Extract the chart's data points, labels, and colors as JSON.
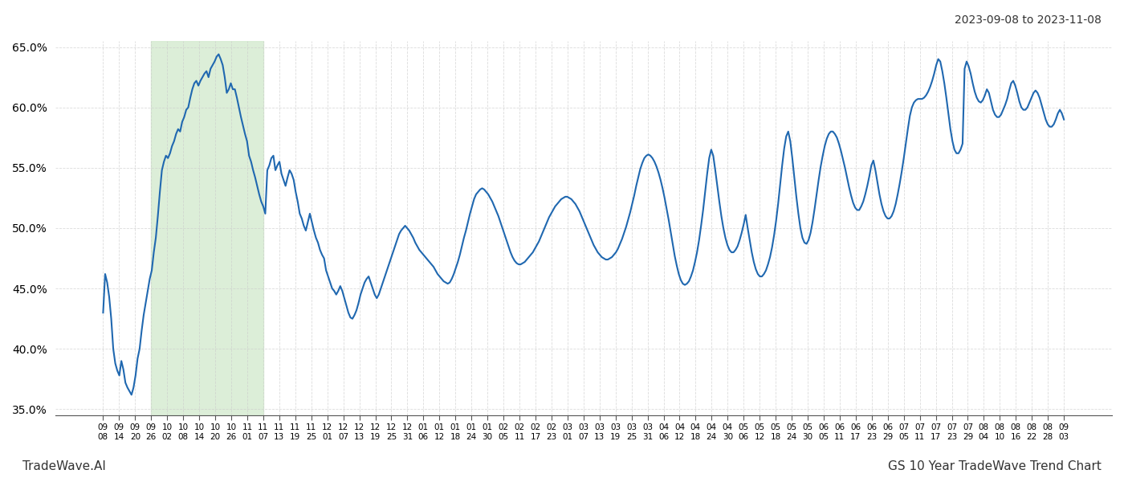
{
  "title_top_right": "2023-09-08 to 2023-11-08",
  "title_bottom_left": "TradeWave.AI",
  "title_bottom_right": "GS 10 Year TradeWave Trend Chart",
  "line_color": "#2068b0",
  "line_width": 1.5,
  "shade_color": "#d6ecd2",
  "shade_alpha": 0.85,
  "ylim": [
    0.345,
    0.655
  ],
  "yticks": [
    0.35,
    0.4,
    0.45,
    0.5,
    0.55,
    0.6,
    0.65
  ],
  "ytick_labels": [
    "35.0%",
    "40.0%",
    "45.0%",
    "50.0%",
    "55.0%",
    "60.0%",
    "65.0%"
  ],
  "xtick_labels": [
    "09-08",
    "09-14",
    "09-20",
    "09-26",
    "10-02",
    "10-08",
    "10-14",
    "10-20",
    "10-26",
    "11-01",
    "11-07",
    "11-13",
    "11-19",
    "11-25",
    "12-01",
    "12-07",
    "12-13",
    "12-19",
    "12-25",
    "12-31",
    "01-06",
    "01-12",
    "01-18",
    "01-24",
    "01-30",
    "02-05",
    "02-11",
    "02-17",
    "02-23",
    "03-01",
    "03-07",
    "03-13",
    "03-19",
    "03-25",
    "03-31",
    "04-06",
    "04-12",
    "04-18",
    "04-24",
    "04-30",
    "05-06",
    "05-12",
    "05-18",
    "05-24",
    "05-30",
    "06-05",
    "06-11",
    "06-17",
    "06-23",
    "06-29",
    "07-05",
    "07-11",
    "07-17",
    "07-23",
    "07-29",
    "08-04",
    "08-10",
    "08-16",
    "08-22",
    "08-28",
    "09-03"
  ],
  "shade_x_start_label": "09-26",
  "shade_x_end_label": "11-07",
  "values": [
    0.43,
    0.462,
    0.455,
    0.443,
    0.425,
    0.4,
    0.388,
    0.382,
    0.378,
    0.39,
    0.383,
    0.372,
    0.368,
    0.365,
    0.362,
    0.368,
    0.378,
    0.392,
    0.4,
    0.415,
    0.428,
    0.438,
    0.448,
    0.458,
    0.465,
    0.48,
    0.492,
    0.51,
    0.53,
    0.548,
    0.555,
    0.56,
    0.558,
    0.562,
    0.568,
    0.572,
    0.578,
    0.582,
    0.58,
    0.588,
    0.592,
    0.598,
    0.6,
    0.608,
    0.615,
    0.62,
    0.622,
    0.618,
    0.622,
    0.625,
    0.628,
    0.63,
    0.625,
    0.632,
    0.635,
    0.638,
    0.642,
    0.644,
    0.64,
    0.635,
    0.625,
    0.612,
    0.615,
    0.62,
    0.615,
    0.615,
    0.608,
    0.6,
    0.592,
    0.585,
    0.578,
    0.572,
    0.56,
    0.555,
    0.548,
    0.542,
    0.535,
    0.528,
    0.522,
    0.518,
    0.512,
    0.548,
    0.552,
    0.558,
    0.56,
    0.548,
    0.552,
    0.555,
    0.545,
    0.54,
    0.535,
    0.542,
    0.548,
    0.545,
    0.54,
    0.53,
    0.522,
    0.512,
    0.508,
    0.502,
    0.498,
    0.505,
    0.512,
    0.505,
    0.498,
    0.492,
    0.488,
    0.482,
    0.478,
    0.475,
    0.465,
    0.46,
    0.455,
    0.45,
    0.448,
    0.445,
    0.448,
    0.452,
    0.448,
    0.442,
    0.436,
    0.43,
    0.426,
    0.425,
    0.428,
    0.432,
    0.438,
    0.445,
    0.45,
    0.455,
    0.458,
    0.46,
    0.455,
    0.45,
    0.445,
    0.442,
    0.445,
    0.45,
    0.455,
    0.46,
    0.465,
    0.47,
    0.475,
    0.48,
    0.485,
    0.49,
    0.495,
    0.498,
    0.5,
    0.502,
    0.5,
    0.498,
    0.495,
    0.492,
    0.488,
    0.485,
    0.482,
    0.48,
    0.478,
    0.476,
    0.474,
    0.472,
    0.47,
    0.468,
    0.465,
    0.462,
    0.46,
    0.458,
    0.456,
    0.455,
    0.454,
    0.455,
    0.458,
    0.462,
    0.467,
    0.472,
    0.478,
    0.485,
    0.492,
    0.498,
    0.505,
    0.512,
    0.518,
    0.524,
    0.528,
    0.53,
    0.532,
    0.533,
    0.532,
    0.53,
    0.528,
    0.525,
    0.522,
    0.518,
    0.514,
    0.51,
    0.505,
    0.5,
    0.495,
    0.49,
    0.485,
    0.48,
    0.476,
    0.473,
    0.471,
    0.47,
    0.47,
    0.471,
    0.472,
    0.474,
    0.476,
    0.478,
    0.48,
    0.483,
    0.486,
    0.489,
    0.493,
    0.497,
    0.501,
    0.505,
    0.509,
    0.512,
    0.515,
    0.518,
    0.52,
    0.522,
    0.524,
    0.525,
    0.526,
    0.526,
    0.525,
    0.524,
    0.522,
    0.52,
    0.517,
    0.514,
    0.51,
    0.506,
    0.502,
    0.498,
    0.494,
    0.49,
    0.486,
    0.483,
    0.48,
    0.478,
    0.476,
    0.475,
    0.474,
    0.474,
    0.475,
    0.476,
    0.478,
    0.48,
    0.483,
    0.487,
    0.491,
    0.496,
    0.501,
    0.507,
    0.513,
    0.52,
    0.527,
    0.535,
    0.542,
    0.549,
    0.554,
    0.558,
    0.56,
    0.561,
    0.56,
    0.558,
    0.555,
    0.551,
    0.546,
    0.54,
    0.533,
    0.525,
    0.516,
    0.507,
    0.497,
    0.487,
    0.477,
    0.469,
    0.462,
    0.457,
    0.454,
    0.453,
    0.454,
    0.456,
    0.46,
    0.465,
    0.472,
    0.48,
    0.49,
    0.502,
    0.515,
    0.53,
    0.545,
    0.558,
    0.565,
    0.56,
    0.548,
    0.535,
    0.522,
    0.51,
    0.5,
    0.492,
    0.486,
    0.482,
    0.48,
    0.48,
    0.482,
    0.485,
    0.49,
    0.496,
    0.503,
    0.511,
    0.5,
    0.49,
    0.48,
    0.472,
    0.466,
    0.462,
    0.46,
    0.46,
    0.462,
    0.465,
    0.47,
    0.476,
    0.484,
    0.494,
    0.506,
    0.52,
    0.536,
    0.552,
    0.566,
    0.576,
    0.58,
    0.572,
    0.558,
    0.542,
    0.526,
    0.512,
    0.5,
    0.492,
    0.488,
    0.487,
    0.49,
    0.496,
    0.505,
    0.516,
    0.528,
    0.54,
    0.551,
    0.56,
    0.568,
    0.574,
    0.578,
    0.58,
    0.58,
    0.578,
    0.575,
    0.57,
    0.564,
    0.557,
    0.55,
    0.542,
    0.534,
    0.527,
    0.521,
    0.517,
    0.515,
    0.515,
    0.518,
    0.522,
    0.528,
    0.535,
    0.543,
    0.552,
    0.556,
    0.548,
    0.538,
    0.528,
    0.52,
    0.514,
    0.51,
    0.508,
    0.508,
    0.51,
    0.514,
    0.52,
    0.528,
    0.537,
    0.547,
    0.558,
    0.57,
    0.582,
    0.593,
    0.6,
    0.604,
    0.606,
    0.607,
    0.607,
    0.607,
    0.608,
    0.61,
    0.613,
    0.617,
    0.622,
    0.628,
    0.635,
    0.64,
    0.638,
    0.63,
    0.62,
    0.608,
    0.595,
    0.582,
    0.572,
    0.565,
    0.562,
    0.562,
    0.565,
    0.57,
    0.632,
    0.638,
    0.634,
    0.628,
    0.62,
    0.613,
    0.608,
    0.605,
    0.604,
    0.606,
    0.61,
    0.615,
    0.612,
    0.605,
    0.598,
    0.594,
    0.592,
    0.592,
    0.594,
    0.598,
    0.602,
    0.607,
    0.614,
    0.62,
    0.622,
    0.618,
    0.612,
    0.605,
    0.6,
    0.598,
    0.598,
    0.6,
    0.604,
    0.608,
    0.612,
    0.614,
    0.612,
    0.608,
    0.602,
    0.596,
    0.59,
    0.586,
    0.584,
    0.584,
    0.586,
    0.59,
    0.595,
    0.598,
    0.595,
    0.59
  ],
  "background_color": "#ffffff",
  "grid_color": "#cccccc",
  "grid_style": "--",
  "grid_alpha": 0.7
}
